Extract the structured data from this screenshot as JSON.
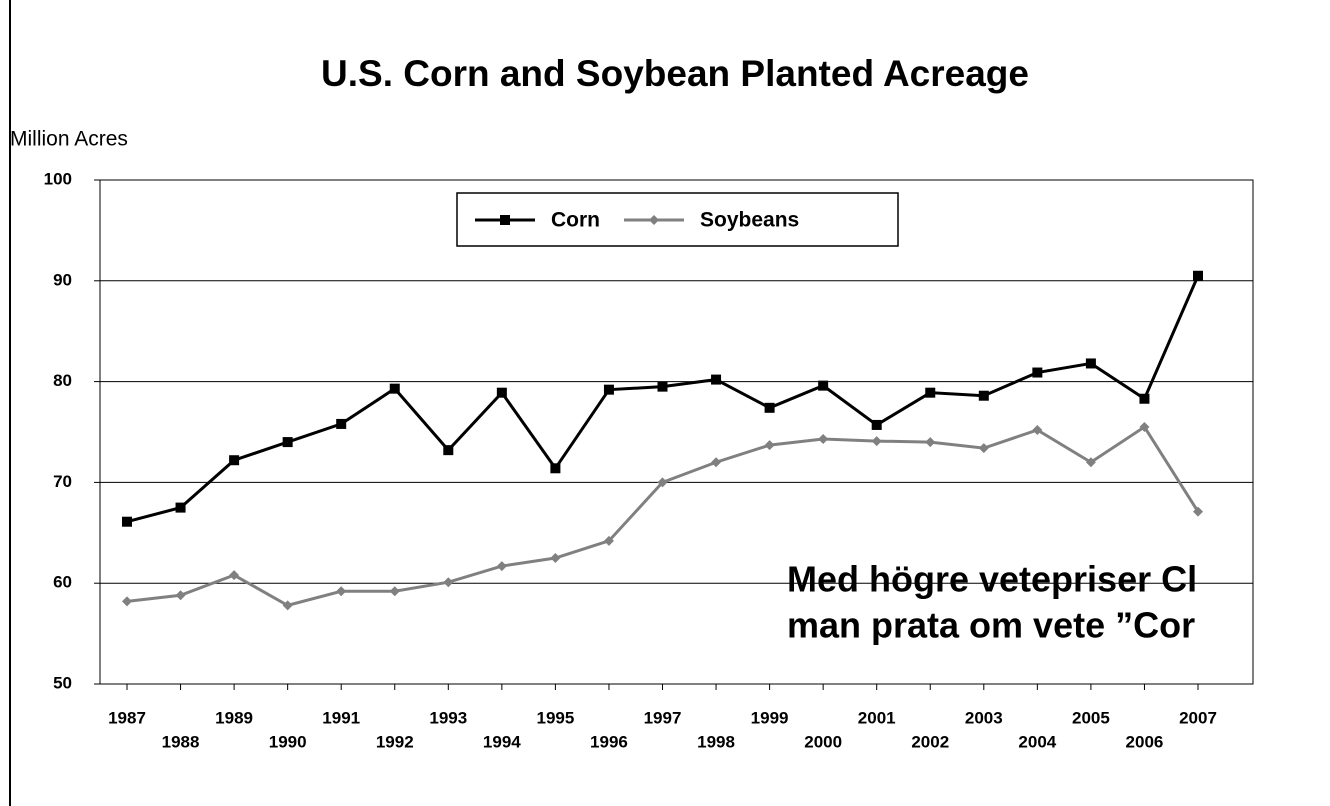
{
  "chart_data": {
    "type": "line",
    "title": "U.S. Corn and Soybean Planted Acreage",
    "y_label": "Million Acres",
    "categories": [
      "1987",
      "1988",
      "1989",
      "1990",
      "1991",
      "1992",
      "1993",
      "1994",
      "1995",
      "1996",
      "1997",
      "1998",
      "1999",
      "2000",
      "2001",
      "2002",
      "2003",
      "2004",
      "2005",
      "2006",
      "2007"
    ],
    "series": [
      {
        "name": "Corn",
        "color": "#000000",
        "marker": "square",
        "values": [
          66.1,
          67.5,
          72.2,
          74.0,
          75.8,
          79.3,
          73.2,
          78.9,
          71.4,
          79.2,
          79.5,
          80.2,
          77.4,
          79.6,
          75.7,
          78.9,
          78.6,
          80.9,
          81.8,
          78.3,
          90.5
        ]
      },
      {
        "name": "Soybeans",
        "color": "#808080",
        "marker": "diamond",
        "values": [
          58.2,
          58.8,
          60.8,
          57.8,
          59.2,
          59.2,
          60.1,
          61.7,
          62.5,
          64.2,
          70.0,
          72.0,
          73.7,
          74.3,
          74.1,
          74.0,
          73.4,
          75.2,
          72.0,
          75.5,
          67.1
        ]
      }
    ],
    "ylim": [
      50,
      100
    ],
    "yticks": [
      50,
      60,
      70,
      80,
      90,
      100
    ],
    "grid": true,
    "legend": "top",
    "annotations": [
      "Med högre vetepriser Cl",
      "man prata om vete ”Cor"
    ]
  }
}
